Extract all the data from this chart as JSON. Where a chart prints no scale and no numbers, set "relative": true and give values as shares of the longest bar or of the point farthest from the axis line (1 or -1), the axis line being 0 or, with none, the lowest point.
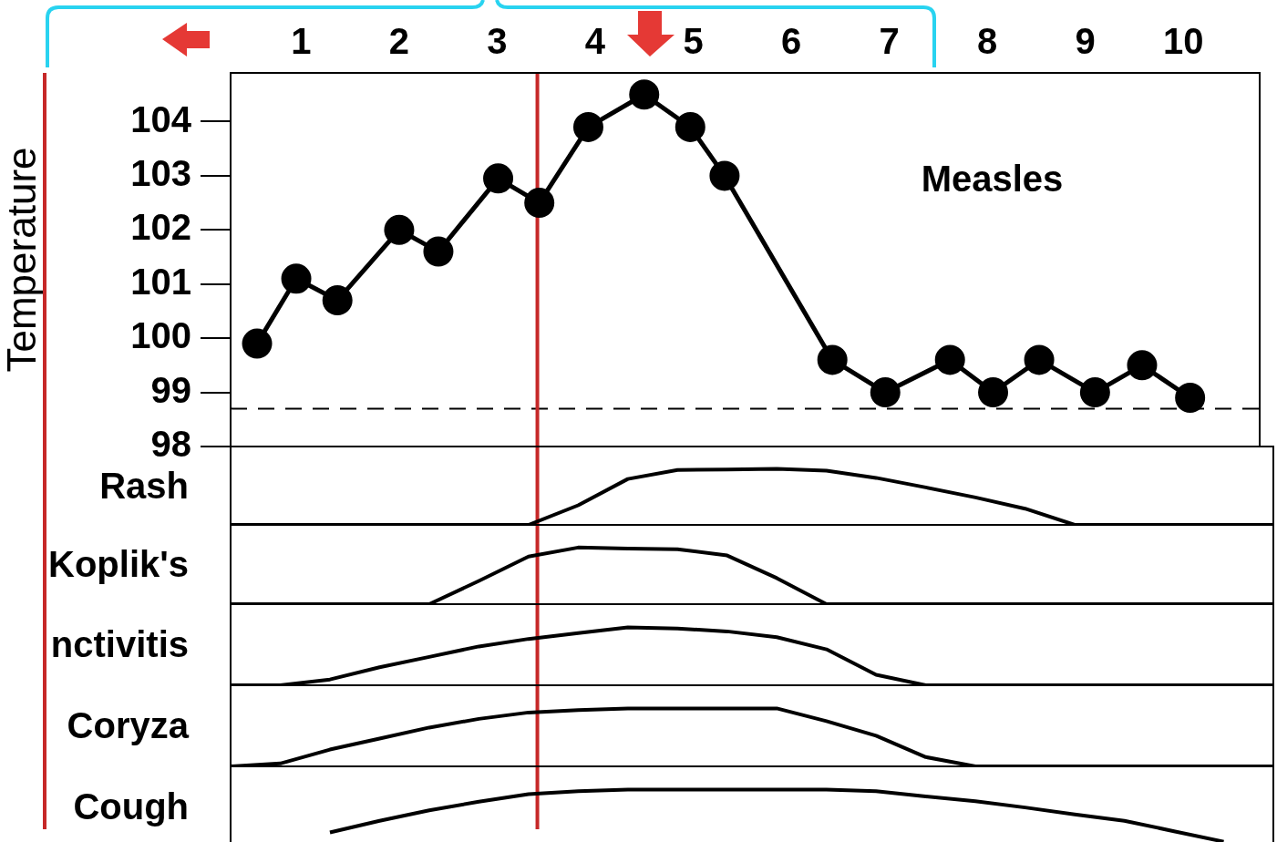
{
  "chart_data": [
    {
      "type": "line",
      "ylabel": "Temperature",
      "annotations": [
        "Measles"
      ],
      "marker": "circle",
      "color": "#000000",
      "x": [
        0.55,
        0.95,
        1.37,
        2.0,
        2.4,
        3.01,
        3.43,
        3.93,
        4.5,
        4.97,
        5.32,
        6.42,
        6.96,
        7.62,
        8.06,
        8.53,
        9.1,
        9.58,
        10.07
      ],
      "values": [
        99.9,
        101.1,
        100.7,
        102.0,
        101.6,
        102.95,
        102.5,
        103.9,
        104.5,
        103.9,
        103.0,
        99.6,
        99.0,
        99.6,
        99.0,
        99.6,
        99.0,
        99.5,
        98.9
      ],
      "xlim": [
        0.28,
        10.78
      ],
      "xticks": [
        1,
        2,
        3,
        4,
        5,
        6,
        7,
        8,
        9,
        10
      ],
      "ylim": [
        98,
        104.9
      ],
      "yticks": [
        98,
        99,
        100,
        101,
        102,
        103,
        104
      ],
      "ref_lines": [
        {
          "axis": "y",
          "value": 98.7,
          "color": "#000000",
          "line_style": "dashed"
        },
        {
          "axis": "x",
          "value": 3.41,
          "color": "#c62828"
        }
      ]
    },
    {
      "type": "line",
      "relative": true,
      "ylabel": "Rash",
      "marker": "none",
      "color": "#000000",
      "categories": [
        null,
        null,
        null,
        null,
        null,
        null,
        null,
        null,
        null,
        null,
        null,
        null,
        null,
        null,
        null,
        null,
        null,
        null,
        null,
        null,
        null,
        null
      ],
      "values": [
        0,
        0,
        0,
        0,
        0,
        0,
        0,
        0.35,
        0.82,
        0.98,
        0.99,
        1,
        0.97,
        0.84,
        0.67,
        0.49,
        0.29,
        0,
        0,
        0,
        0,
        0
      ]
    },
    {
      "type": "line",
      "relative": true,
      "ylabel": "Koplik's",
      "marker": "none",
      "color": "#000000",
      "categories": [
        null,
        null,
        null,
        null,
        null,
        null,
        null,
        null,
        null,
        null,
        null,
        null,
        null,
        null,
        null,
        null,
        null,
        null,
        null,
        null,
        null,
        null
      ],
      "values": [
        0,
        0,
        0,
        0,
        0,
        0.41,
        0.84,
        1,
        0.98,
        0.97,
        0.86,
        0.46,
        0,
        0,
        0,
        0,
        0,
        0,
        0,
        0,
        0,
        0
      ]
    },
    {
      "type": "line",
      "relative": true,
      "ylabel": "nctivitis",
      "marker": "none",
      "color": "#000000",
      "categories": [
        null,
        null,
        null,
        null,
        null,
        null,
        null,
        null,
        null,
        null,
        null,
        null,
        null,
        null,
        null,
        null,
        null,
        null,
        null,
        null,
        null,
        null
      ],
      "values": [
        0,
        0,
        0.1,
        0.31,
        0.49,
        0.67,
        0.8,
        0.9,
        1,
        0.98,
        0.93,
        0.83,
        0.62,
        0.18,
        0,
        0,
        0,
        0,
        0,
        0,
        0,
        0
      ]
    },
    {
      "type": "line",
      "relative": true,
      "ylabel": "Coryza",
      "marker": "none",
      "color": "#000000",
      "categories": [
        null,
        null,
        null,
        null,
        null,
        null,
        null,
        null,
        null,
        null,
        null,
        null,
        null,
        null,
        null,
        null,
        null,
        null,
        null,
        null,
        null,
        null
      ],
      "values": [
        0,
        0.05,
        0.29,
        0.48,
        0.67,
        0.82,
        0.93,
        0.97,
        1,
        1,
        1,
        1,
        0.78,
        0.53,
        0.16,
        0,
        0,
        0,
        0,
        0,
        0,
        0
      ]
    },
    {
      "type": "line",
      "relative": true,
      "ylabel": "Cough",
      "marker": "none",
      "color": "#000000",
      "categories": [
        null,
        null,
        null,
        null,
        null,
        null,
        null,
        null,
        null,
        null,
        null,
        null,
        null,
        null,
        null,
        null,
        null,
        null,
        null,
        null,
        null,
        null
      ],
      "values": [
        null,
        null,
        0.26,
        0.46,
        0.64,
        0.79,
        0.92,
        0.97,
        1,
        1,
        1,
        1,
        1,
        0.97,
        0.88,
        0.8,
        0.69,
        0.57,
        0.46,
        0.28,
        0.1,
        null
      ]
    }
  ]
}
